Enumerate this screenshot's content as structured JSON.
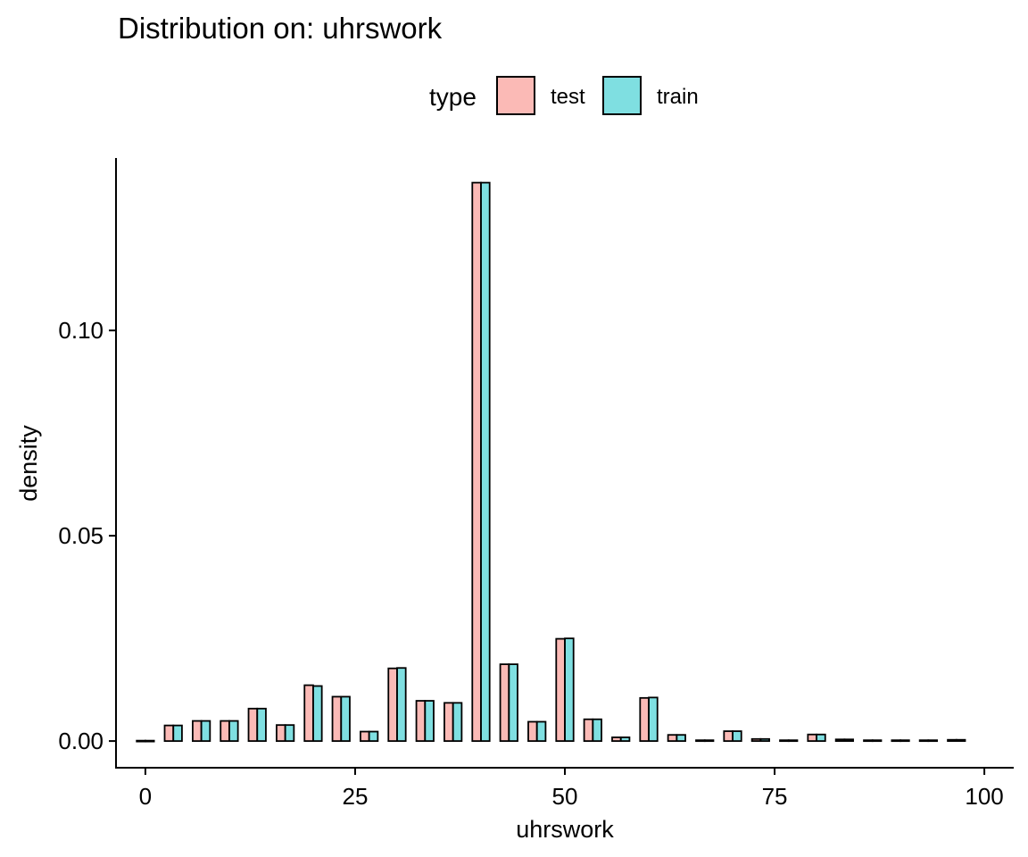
{
  "chart_data": {
    "type": "bar",
    "title": "Distribution on: uhrswork",
    "xlabel": "uhrswork",
    "ylabel": "density",
    "xlim": [
      -3.5,
      103.5
    ],
    "ylim": [
      -0.0065,
      0.142
    ],
    "x_ticks": [
      0,
      25,
      50,
      75,
      100
    ],
    "x_tick_labels": [
      "0",
      "25",
      "50",
      "75",
      "100"
    ],
    "y_ticks": [
      0,
      0.05,
      0.1
    ],
    "y_tick_labels": [
      "0.00",
      "0.05",
      "0.10"
    ],
    "grid": false,
    "legend": {
      "title": "type",
      "placement": "top",
      "entries": [
        {
          "label": "test",
          "color": "#f8766d"
        },
        {
          "label": "train",
          "color": "#00bfc4"
        }
      ]
    },
    "bin_width": 3.33,
    "x": [
      0,
      3.33,
      6.67,
      10,
      13.33,
      16.67,
      20,
      23.33,
      26.67,
      30,
      33.33,
      36.67,
      40,
      43.33,
      46.67,
      50,
      53.33,
      56.67,
      60,
      63.33,
      66.67,
      70,
      73.33,
      76.67,
      80,
      83.33,
      86.67,
      90,
      93.33,
      96.67
    ],
    "series": [
      {
        "name": "test",
        "color": "#f8766d",
        "values": [
          0.0001,
          0.0038,
          0.0049,
          0.0049,
          0.0079,
          0.0039,
          0.0136,
          0.0108,
          0.0023,
          0.0177,
          0.0098,
          0.0093,
          0.136,
          0.0187,
          0.0047,
          0.0249,
          0.0053,
          0.0009,
          0.0105,
          0.0015,
          0.0002,
          0.0024,
          0.0005,
          0.0002,
          0.0016,
          0.0004,
          0.0002,
          0.0002,
          0.0002,
          0.0003
        ]
      },
      {
        "name": "train",
        "color": "#00bfc4",
        "values": [
          0.0001,
          0.0038,
          0.0049,
          0.0049,
          0.0079,
          0.0039,
          0.0134,
          0.0108,
          0.0023,
          0.0178,
          0.0098,
          0.0093,
          0.136,
          0.0187,
          0.0047,
          0.025,
          0.0053,
          0.0009,
          0.0106,
          0.0015,
          0.0002,
          0.0024,
          0.0005,
          0.0002,
          0.0016,
          0.0004,
          0.0002,
          0.0002,
          0.0002,
          0.0003
        ]
      }
    ]
  }
}
